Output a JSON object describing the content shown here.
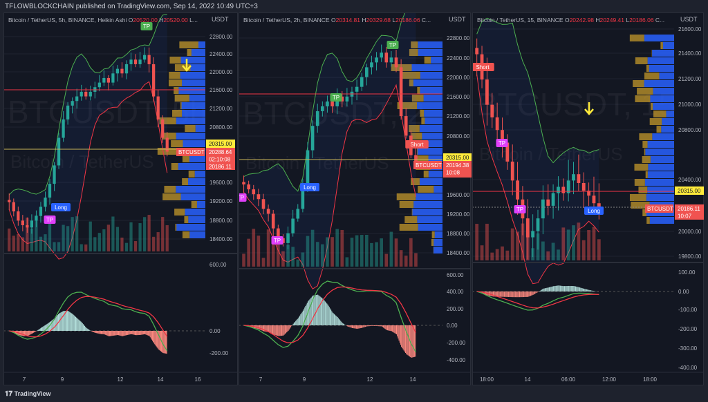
{
  "publisher_line": "TFLOWBLOCKCHAIN published on TradingView.com, Sep 14, 2022 10:49 UTC+3",
  "logo_text": "TradingView",
  "colors": {
    "bg": "#131722",
    "up": "#26a69a",
    "down": "#ef5350",
    "band": "#4caf50",
    "basis": "#f23645",
    "gold": "#b8902a",
    "blue": "#2962ff",
    "yellow": "#ffeb3b",
    "label_red": "#f05350",
    "tp": "#4caf50",
    "long": "#2962ff",
    "marker_tp_pink": "#e040fb"
  },
  "panes": [
    {
      "header": {
        "symbol": "Bitcoin / TetherUS, 5h, BINANCE, Heikin Ashi",
        "o_label": "O",
        "o": "20520.00",
        "h_label": "H",
        "h": "20520.00",
        "more": "L..."
      },
      "unit": "USDT",
      "watermark": "BTCUSDT, 5h",
      "watermark_sub": "Bitcoin / TetherUS",
      "price_ticks": [
        "22800.00",
        "22400.00",
        "22000.00",
        "21600.00",
        "21200.00",
        "20800.00",
        "19600.00",
        "19200.00",
        "18800.00",
        "18400.00"
      ],
      "macd_ticks": [
        "600.00",
        "0.00",
        "-200.00"
      ],
      "x_ticks": [
        "7",
        "9",
        "12",
        "14",
        "16"
      ],
      "alert_price": "20315.00",
      "symbol_label": "BTCUSDT",
      "last_price": "20288.64",
      "countdown": "02:10:08",
      "low_price": "20186.11",
      "markers": [
        {
          "text": "TP",
          "kind": "tp"
        },
        {
          "text": "Long",
          "kind": "long"
        },
        {
          "text": "TP",
          "kind": "tp2"
        }
      ],
      "closes": [
        19200,
        19000,
        18800,
        18700,
        18650,
        18800,
        18900,
        19100,
        19300,
        19600,
        20000,
        20600,
        21000,
        21300,
        21400,
        21500,
        21600,
        21500,
        21600,
        21700,
        21800,
        21900,
        21800,
        22000,
        22100,
        22000,
        22200,
        22300,
        22200,
        22300,
        22400,
        22200,
        21500,
        21000,
        20600,
        20300
      ]
    },
    {
      "header": {
        "symbol": "Bitcoin / TetherUS, 2h, BINANCE",
        "o_label": "O",
        "o": "20314.81",
        "h_label": "H",
        "h": "20329.68",
        "l_label": "L",
        "l": "20186.06",
        "more": "C..."
      },
      "unit": "USDT",
      "watermark": "BTCUSDT, 2",
      "watermark_sub": "Bitcoin / TetherUS",
      "price_ticks": [
        "22800.00",
        "22400.00",
        "22000.00",
        "21600.00",
        "21200.00",
        "20800.00",
        "19600.00",
        "19200.00",
        "18800.00",
        "18400.00"
      ],
      "macd_ticks": [
        "600.00",
        "400.00",
        "200.00",
        "0.00",
        "-200.00",
        "-400.00"
      ],
      "x_ticks": [
        "7",
        "9",
        "12",
        "14"
      ],
      "alert_price": "20315.00",
      "symbol_label": "BTCUSDT",
      "last_price": "20194.38",
      "countdown": "10:08",
      "markers": [
        {
          "text": "TP",
          "kind": "tp"
        },
        {
          "text": "TP",
          "kind": "tp"
        },
        {
          "text": "Long",
          "kind": "long"
        },
        {
          "text": "TP",
          "kind": "tp2"
        },
        {
          "text": "TP",
          "kind": "tp2"
        },
        {
          "text": "Short",
          "kind": "short"
        }
      ],
      "closes": [
        19800,
        19700,
        19600,
        19500,
        19300,
        19200,
        18900,
        18700,
        18600,
        18800,
        19100,
        19300,
        19800,
        20500,
        21000,
        21300,
        21400,
        21500,
        21400,
        21600,
        21500,
        21600,
        21700,
        21800,
        22000,
        22200,
        22300,
        22400,
        22500,
        22300,
        22400,
        22200,
        21200,
        20800,
        20400,
        20200
      ]
    },
    {
      "header": {
        "symbol": "Bitcoin / TetherUS, 15, BINANCE",
        "o_label": "O",
        "o": "20242.98",
        "h_label": "H",
        "h": "20249.41",
        "l_label": "L",
        "l": "20186.06",
        "more": "C..."
      },
      "unit": "USDT",
      "watermark": "BTCUSDT, 15",
      "watermark_sub": "Bitcoin / TetherUS",
      "price_ticks": [
        "21600.00",
        "21400.00",
        "21200.00",
        "21000.00",
        "20800.00",
        "20400.00",
        "20000.00",
        "19800.00"
      ],
      "macd_ticks": [
        "100.00",
        "0.00",
        "-100.00",
        "-200.00",
        "-300.00",
        "-400.00"
      ],
      "x_ticks": [
        "18:00",
        "14",
        "06:00",
        "12:00",
        "18:00"
      ],
      "alert_price": "20315.00",
      "symbol_label": "BTCUSDT",
      "last_price": "20186.11",
      "countdown": "10:07",
      "markers": [
        {
          "text": "Short",
          "kind": "short"
        },
        {
          "text": "TP",
          "kind": "tp2"
        },
        {
          "text": "TP",
          "kind": "tp2"
        },
        {
          "text": "Long",
          "kind": "long"
        }
      ],
      "closes": [
        21400,
        21200,
        21000,
        20900,
        20800,
        20700,
        20550,
        20400,
        20250,
        20100,
        19950,
        20000,
        20100,
        20250,
        20200,
        20300,
        20350,
        20300,
        20400,
        20450,
        20380,
        20320,
        20280,
        20220,
        20190
      ]
    }
  ]
}
